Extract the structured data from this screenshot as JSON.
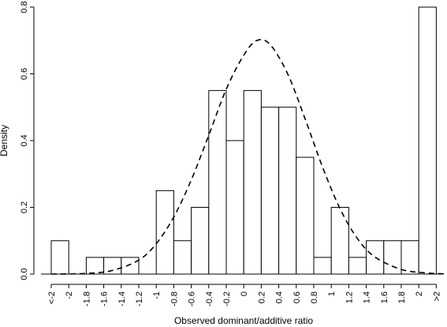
{
  "chart_data": {
    "type": "bar",
    "xlabel": "Observed dominant/additive ratio",
    "ylabel": "Density",
    "ylim": [
      0,
      0.8
    ],
    "yticks": [
      "0.0",
      "0.2",
      "0.4",
      "0.6",
      "0.8"
    ],
    "categories": [
      "<-2",
      "-2",
      "-1.8",
      "-1.6",
      "-1.4",
      "-1.2",
      "-1",
      "-0.8",
      "-0.6",
      "-0.4",
      "-0.2",
      "0",
      "0.2",
      "0.4",
      "0.6",
      "0.8",
      "1",
      "1.2",
      "1.4",
      "1.6",
      "1.8",
      "2",
      ">2"
    ],
    "bins": [
      {
        "from": "<-2",
        "to": "-2",
        "density": 0.1
      },
      {
        "from": "-2",
        "to": "-1.8",
        "density": 0.0
      },
      {
        "from": "-1.8",
        "to": "-1.6",
        "density": 0.05
      },
      {
        "from": "-1.6",
        "to": "-1.4",
        "density": 0.05
      },
      {
        "from": "-1.4",
        "to": "-1.2",
        "density": 0.05
      },
      {
        "from": "-1.2",
        "to": "-1",
        "density": 0.0
      },
      {
        "from": "-1",
        "to": "-0.8",
        "density": 0.25
      },
      {
        "from": "-0.8",
        "to": "-0.6",
        "density": 0.1
      },
      {
        "from": "-0.6",
        "to": "-0.4",
        "density": 0.2
      },
      {
        "from": "-0.4",
        "to": "-0.2",
        "density": 0.55
      },
      {
        "from": "-0.2",
        "to": "0",
        "density": 0.4
      },
      {
        "from": "0",
        "to": "0.2",
        "density": 0.55
      },
      {
        "from": "0.2",
        "to": "0.4",
        "density": 0.5
      },
      {
        "from": "0.4",
        "to": "0.6",
        "density": 0.5
      },
      {
        "from": "0.6",
        "to": "0.8",
        "density": 0.35
      },
      {
        "from": "0.8",
        "to": "1",
        "density": 0.05
      },
      {
        "from": "1",
        "to": "1.2",
        "density": 0.2
      },
      {
        "from": "1.2",
        "to": "1.4",
        "density": 0.05
      },
      {
        "from": "1.4",
        "to": "1.6",
        "density": 0.1
      },
      {
        "from": "1.6",
        "to": "1.8",
        "density": 0.1
      },
      {
        "from": "1.8",
        "to": "2",
        "density": 0.1
      },
      {
        "from": "2",
        "to": ">2",
        "density": 0.8
      }
    ],
    "curve": {
      "style": "dashed",
      "kind": "normal density",
      "points": [
        {
          "x": -2.2,
          "y": 0.0
        },
        {
          "x": -1.8,
          "y": 0.002
        },
        {
          "x": -1.5,
          "y": 0.011
        },
        {
          "x": -1.2,
          "y": 0.042
        },
        {
          "x": -1.0,
          "y": 0.091
        },
        {
          "x": -0.8,
          "y": 0.171
        },
        {
          "x": -0.6,
          "y": 0.282
        },
        {
          "x": -0.4,
          "y": 0.416
        },
        {
          "x": -0.2,
          "y": 0.554
        },
        {
          "x": 0.0,
          "y": 0.656
        },
        {
          "x": 0.15,
          "y": 0.7
        },
        {
          "x": 0.3,
          "y": 0.688
        },
        {
          "x": 0.5,
          "y": 0.601
        },
        {
          "x": 0.7,
          "y": 0.466
        },
        {
          "x": 0.9,
          "y": 0.321
        },
        {
          "x": 1.1,
          "y": 0.196
        },
        {
          "x": 1.3,
          "y": 0.106
        },
        {
          "x": 1.5,
          "y": 0.051
        },
        {
          "x": 1.8,
          "y": 0.014
        },
        {
          "x": 2.1,
          "y": 0.003
        },
        {
          "x": 2.4,
          "y": 0.0
        }
      ]
    },
    "grid": false,
    "legend": "none"
  }
}
